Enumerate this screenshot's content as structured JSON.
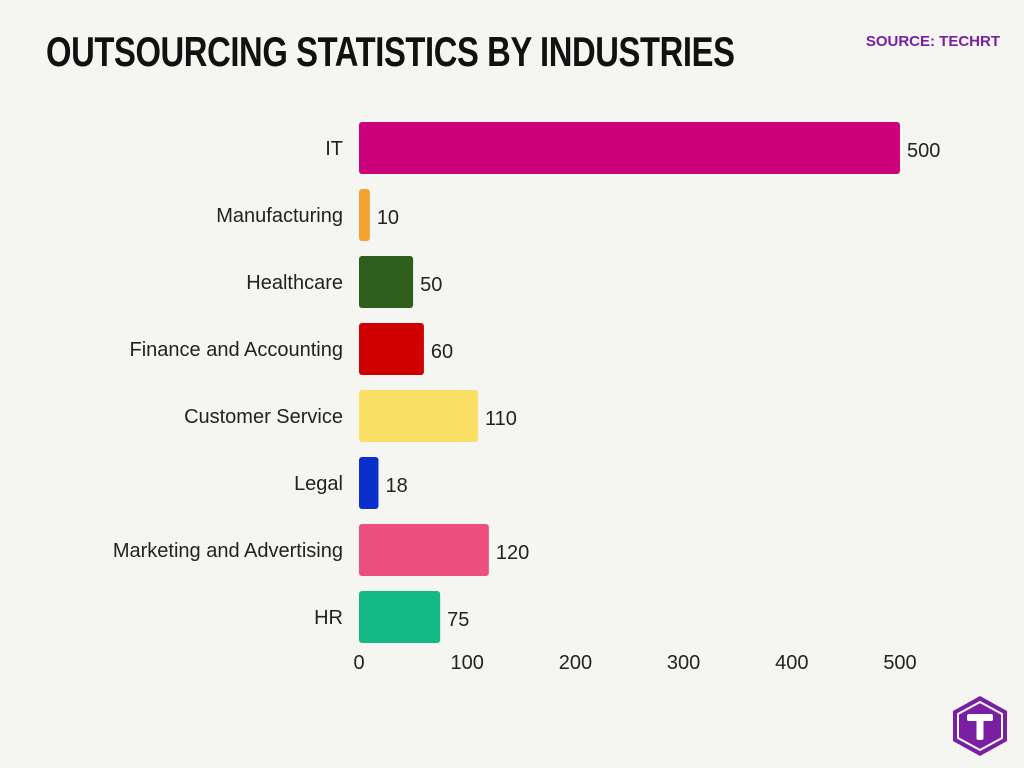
{
  "title": "OUTSOURCING STATISTICS BY INDUSTRIES",
  "source": "SOURCE: TECHRT",
  "logo_icon": "techrt-hexagon-t-logo",
  "chart_data": {
    "type": "bar",
    "orientation": "horizontal",
    "categories": [
      "IT",
      "Manufacturing",
      "Healthcare",
      "Finance and Accounting",
      "Customer Service",
      "Legal",
      "Marketing and Advertising",
      "HR"
    ],
    "values": [
      500,
      10,
      50,
      60,
      110,
      18,
      120,
      75
    ],
    "colors": [
      "#cc007a",
      "#f5a233",
      "#2e5e1c",
      "#d10000",
      "#fbe066",
      "#0a2fcc",
      "#ec4f7e",
      "#14b885"
    ],
    "xlim": [
      0,
      500
    ],
    "xticks": [
      0,
      100,
      200,
      300,
      400,
      500
    ],
    "xlabel": "",
    "ylabel": "",
    "grid": false,
    "data_labels": true
  }
}
